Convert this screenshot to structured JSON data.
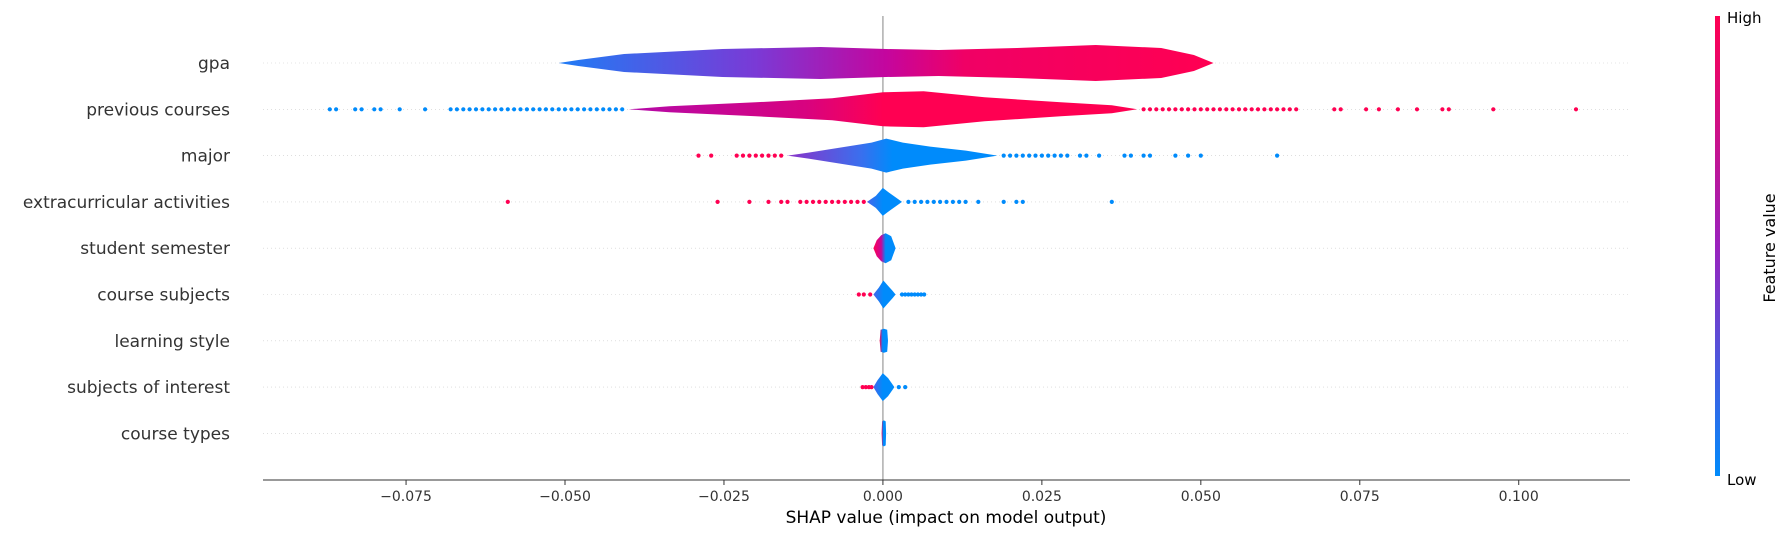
{
  "chart_data": {
    "type": "violin",
    "xlabel": "SHAP value (impact on model output)",
    "xlim": [
      -0.0975,
      0.1175
    ],
    "xticks": [
      -0.075,
      -0.05,
      -0.025,
      0.0,
      0.025,
      0.05,
      0.075,
      0.1
    ],
    "xtick_labels": [
      "−0.075",
      "−0.050",
      "−0.025",
      "0.000",
      "0.025",
      "0.050",
      "0.075",
      "0.100"
    ],
    "colorbar": {
      "title": "Feature value",
      "high_label": "High",
      "low_label": "Low",
      "low_color": "#008bfb",
      "high_color": "#ff0052"
    },
    "features": [
      {
        "name": "gpa",
        "violin": {
          "min": -0.051,
          "max": 0.052,
          "low_side": "left"
        },
        "dots_low": [],
        "dots_high": []
      },
      {
        "name": "previous courses",
        "violin": {
          "min": -0.04,
          "max": 0.04,
          "low_side": "left"
        },
        "dots_low": [
          -0.087,
          -0.086,
          -0.083,
          -0.082,
          -0.08,
          -0.079,
          -0.076,
          -0.072,
          -0.068,
          -0.067,
          -0.066,
          -0.065,
          -0.064,
          -0.063,
          -0.062,
          -0.061,
          -0.06,
          -0.059,
          -0.058,
          -0.057,
          -0.056,
          -0.055,
          -0.054,
          -0.053,
          -0.052,
          -0.051,
          -0.05,
          -0.049,
          -0.048,
          -0.047,
          -0.046,
          -0.045,
          -0.044,
          -0.043,
          -0.042,
          -0.041
        ],
        "dots_high": [
          0.041,
          0.042,
          0.043,
          0.044,
          0.045,
          0.046,
          0.047,
          0.048,
          0.049,
          0.05,
          0.051,
          0.052,
          0.053,
          0.054,
          0.055,
          0.056,
          0.057,
          0.058,
          0.059,
          0.06,
          0.061,
          0.062,
          0.063,
          0.064,
          0.065,
          0.071,
          0.072,
          0.076,
          0.078,
          0.081,
          0.084,
          0.088,
          0.089,
          0.096,
          0.109
        ]
      },
      {
        "name": "major",
        "violin": {
          "min": -0.015,
          "max": 0.018,
          "low_side": "right"
        },
        "dots_low": [
          0.019,
          0.02,
          0.021,
          0.022,
          0.023,
          0.024,
          0.025,
          0.026,
          0.027,
          0.028,
          0.029,
          0.031,
          0.032,
          0.034,
          0.038,
          0.039,
          0.041,
          0.042,
          0.046,
          0.048,
          0.05,
          0.062
        ],
        "dots_high": [
          -0.029,
          -0.027,
          -0.023,
          -0.022,
          -0.021,
          -0.02,
          -0.019,
          -0.018,
          -0.017,
          -0.016
        ]
      },
      {
        "name": "extracurricular activities",
        "violin": {
          "min": -0.0025,
          "max": 0.003,
          "low_side": "right"
        },
        "dots_low": [
          0.004,
          0.005,
          0.006,
          0.007,
          0.008,
          0.009,
          0.01,
          0.011,
          0.012,
          0.013,
          0.015,
          0.019,
          0.021,
          0.022,
          0.036
        ],
        "dots_high": [
          -0.059,
          -0.026,
          -0.021,
          -0.018,
          -0.016,
          -0.015,
          -0.013,
          -0.012,
          -0.011,
          -0.01,
          -0.009,
          -0.008,
          -0.007,
          -0.006,
          -0.005,
          -0.004,
          -0.003
        ]
      },
      {
        "name": "student semester",
        "violin": {
          "min": -0.0015,
          "max": 0.002,
          "low_side": "right"
        },
        "dots_low": [],
        "dots_high": []
      },
      {
        "name": "course subjects",
        "violin": {
          "min": -0.0015,
          "max": 0.002,
          "low_side": "right"
        },
        "dots_low": [
          0.003,
          0.0035,
          0.004,
          0.0045,
          0.005,
          0.0055,
          0.006,
          0.0065
        ],
        "dots_high": [
          -0.0038,
          -0.003,
          -0.002
        ]
      },
      {
        "name": "learning style",
        "violin": {
          "min": -0.0005,
          "max": 0.0008,
          "low_side": "right"
        },
        "dots_low": [],
        "dots_high": []
      },
      {
        "name": "subjects of interest",
        "violin": {
          "min": -0.0015,
          "max": 0.0018,
          "low_side": "right"
        },
        "dots_low": [
          0.0025,
          0.0035
        ],
        "dots_high": [
          -0.0032,
          -0.0027,
          -0.0022,
          -0.0018
        ]
      },
      {
        "name": "course types",
        "violin": {
          "min": -0.0002,
          "max": 0.0005,
          "low_side": "right"
        },
        "dots_low": [],
        "dots_high": []
      }
    ]
  }
}
